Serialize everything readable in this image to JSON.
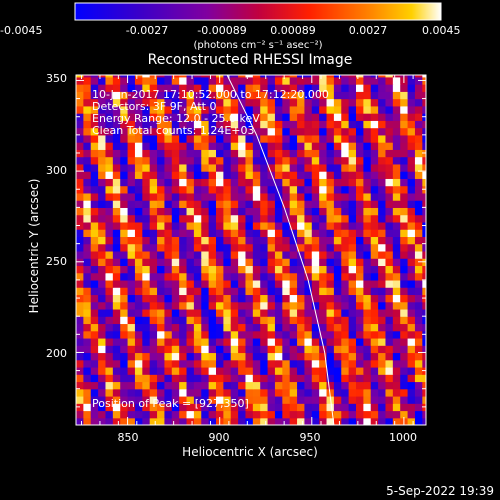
{
  "plot_title": "Reconstructed RHESSI Image",
  "colorbar": {
    "tick_labels": [
      "-0.0045",
      "-0.0027",
      "-0.00089",
      "0.00089",
      "0.0027",
      "0.0045"
    ],
    "unit_label": "(photons cm⁻² s⁻¹ asec⁻²)",
    "range": [
      -0.0045,
      0.0045
    ]
  },
  "annotations": {
    "time_range": "10-Jan-2017 17:10:52.000 to 17:12:20.000",
    "detectors": "Detectors: 3F 9F, Att 0",
    "energy": "Energy Range: 12.0 - 25.0 keV",
    "method": "Clean    Total counts: 1.24E+03",
    "peak": "Position of Peak = [927,350]"
  },
  "timestamp": "5-Sep-2022 19:39",
  "chart_data": {
    "type": "heatmap",
    "title": "Reconstructed RHESSI Image",
    "xlabel": "Heliocentric X (arcsec)",
    "ylabel": "Heliocentric Y (arcsec)",
    "xlim": [
      822,
      1012
    ],
    "ylim": [
      160,
      353
    ],
    "x_ticks": [
      850,
      900,
      950,
      1000
    ],
    "y_ticks": [
      200,
      250,
      300,
      350
    ],
    "x_tick_labels": [
      "850",
      "900",
      "950",
      "1000"
    ],
    "y_tick_labels": [
      "200",
      "250",
      "300",
      "350"
    ],
    "pixel_size_arcsec": 4,
    "fringe_pattern": "diagonal stripes",
    "limb_curve": {
      "x": [
        904,
        920,
        935,
        948,
        957,
        962
      ],
      "y": [
        353,
        320,
        280,
        240,
        200,
        160
      ]
    },
    "peak": [
      927,
      350
    ]
  }
}
